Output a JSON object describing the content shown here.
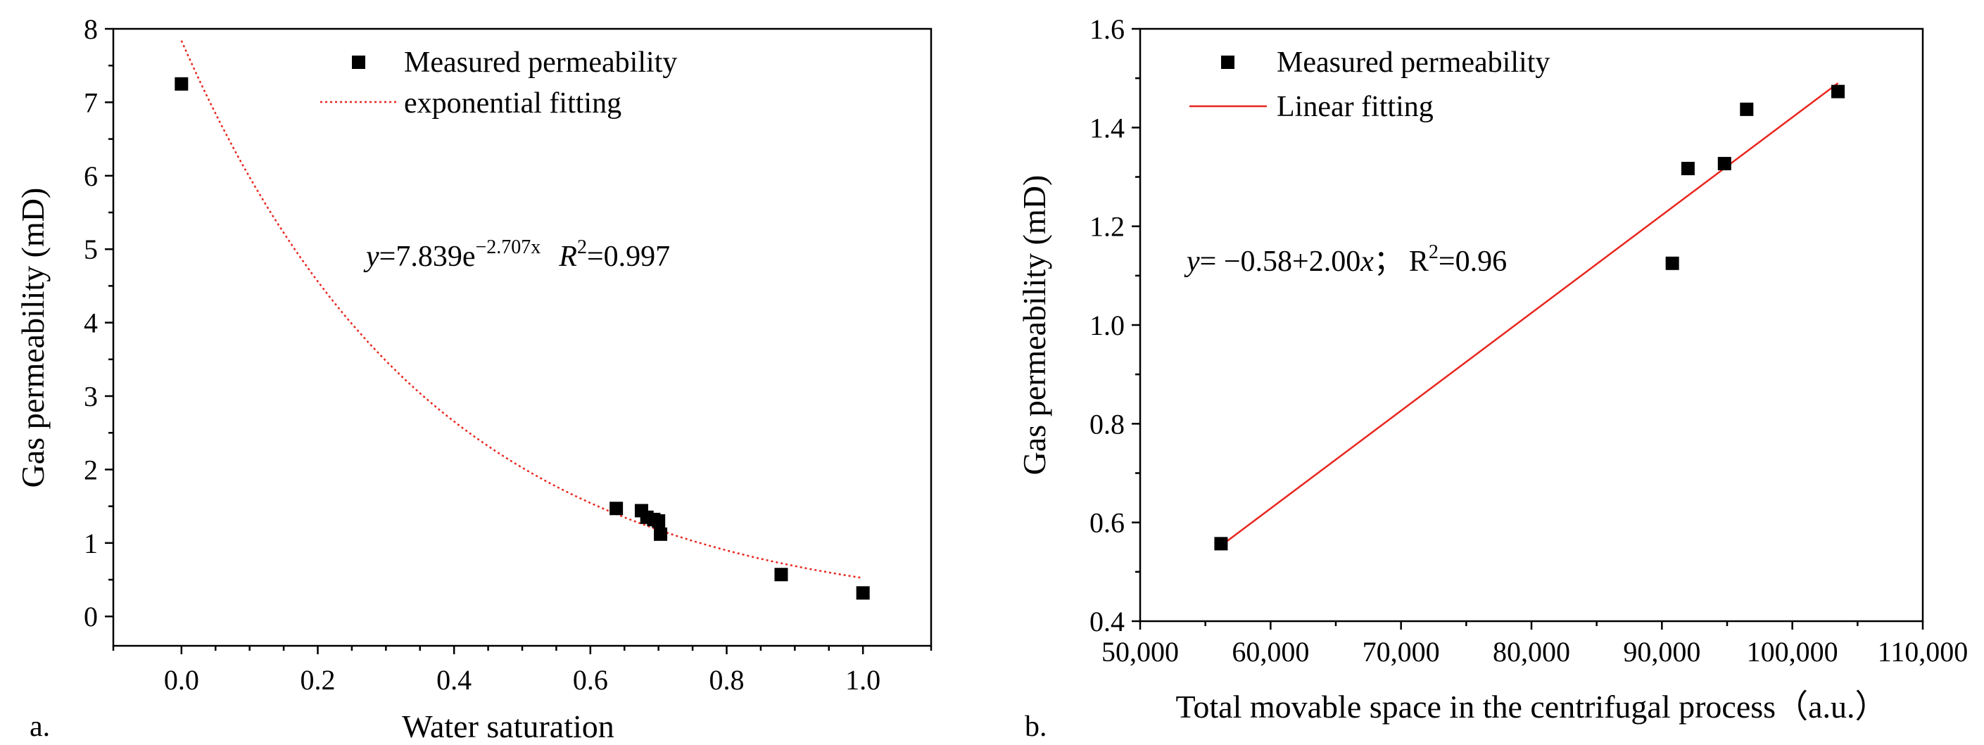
{
  "chart_data": [
    {
      "type": "scatter",
      "panel_label": "a.",
      "xlabel": "Water saturation",
      "ylabel": "Gas permeability (mD)",
      "xlim": [
        -0.1,
        1.1
      ],
      "ylim": [
        -0.4,
        8
      ],
      "xticks": [
        0.0,
        0.2,
        0.4,
        0.6,
        0.8,
        1.0
      ],
      "xtick_labels": [
        "0.0",
        "0.2",
        "0.4",
        "0.6",
        "0.8",
        "1.0"
      ],
      "yticks": [
        0,
        1,
        2,
        3,
        4,
        5,
        6,
        7,
        8
      ],
      "ytick_labels": [
        "0",
        "1",
        "2",
        "3",
        "4",
        "5",
        "6",
        "7",
        "8"
      ],
      "series": [
        {
          "name": "Measured permeability",
          "kind": "points",
          "x": [
            0.0,
            0.638,
            0.675,
            0.683,
            0.693,
            0.7,
            0.703,
            0.88,
            1.0
          ],
          "y": [
            7.25,
            1.47,
            1.44,
            1.35,
            1.32,
            1.3,
            1.12,
            0.57,
            0.32
          ]
        },
        {
          "name": "exponential fitting",
          "kind": "curve",
          "style": "dotted",
          "color": "#e8261e",
          "a": 7.839,
          "b": -2.707,
          "x_range": [
            0.0,
            1.0
          ]
        }
      ],
      "legend": [
        "Measured permeability",
        "exponential fitting"
      ],
      "annotation": {
        "y_var": "y",
        "eq_main": "=7.839e",
        "exponent": "−2.707x",
        "r_var": "R",
        "r_sup": "2",
        "r_value": "=0.997"
      }
    },
    {
      "type": "scatter",
      "panel_label": "b.",
      "xlabel": "Total movable space in the centrifugal process（a.u.）",
      "ylabel": "Gas permeability (mD)",
      "xlim": [
        50000,
        110000
      ],
      "ylim": [
        0.4,
        1.6
      ],
      "xticks": [
        50000,
        60000,
        70000,
        80000,
        90000,
        100000,
        110000
      ],
      "xtick_labels": [
        "50,000",
        "60,000",
        "70,000",
        "80,000",
        "90,000",
        "100,000",
        "110,000"
      ],
      "yticks": [
        0.4,
        0.6,
        0.8,
        1.0,
        1.2,
        1.4,
        1.6
      ],
      "ytick_labels": [
        "0.4",
        "0.6",
        "0.8",
        "1.0",
        "1.2",
        "1.4",
        "1.6"
      ],
      "series": [
        {
          "name": "Measured permeability",
          "kind": "points",
          "x": [
            56200,
            90800,
            92000,
            94800,
            96500,
            103500
          ],
          "y": [
            0.557,
            1.125,
            1.317,
            1.327,
            1.437,
            1.473
          ]
        },
        {
          "name": "Linear fitting",
          "kind": "line",
          "style": "solid",
          "color": "#e8261e",
          "x_range": [
            56200,
            103500
          ],
          "y_range": [
            0.553,
            1.49
          ]
        }
      ],
      "legend": [
        "Measured permeability",
        "Linear fitting"
      ],
      "annotation": {
        "y_var": "y",
        "eq_main": "= −0.58+2.00",
        "x_var": "x",
        "sep": "；",
        "r_var": "R",
        "r_sup": "2",
        "r_value": "=0.96"
      }
    }
  ]
}
